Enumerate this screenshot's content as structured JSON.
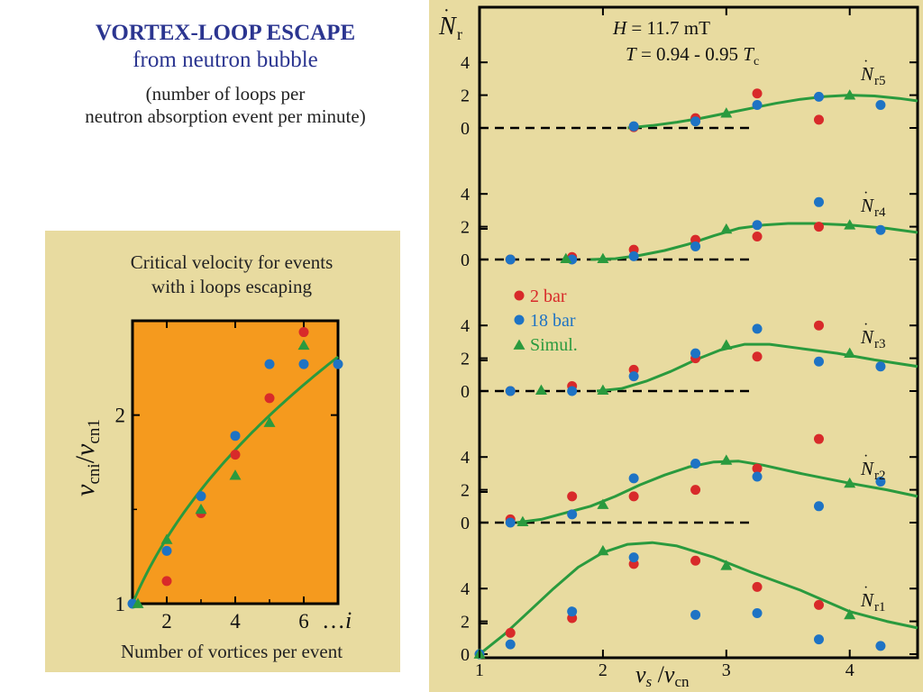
{
  "header": {
    "title": "VORTEX-LOOP ESCAPE",
    "subtitle": "from neutron bubble",
    "note_line1": "(number of loops per",
    "note_line2": "neutron absorption event per minute)"
  },
  "colors": {
    "panel_bg": "#e8dba0",
    "inset_plot_bg": "#f59a1e",
    "red": "#d82a2a",
    "blue": "#1e73c4",
    "green": "#2a9a3e",
    "axis": "#000000"
  },
  "left_panel": {
    "caption_line1": "Critical velocity for events",
    "caption_line2": "with i loops escaping",
    "xlabel": "Number of vortices per event",
    "ylabel_main": "v",
    "ylabel_sub1": "cni",
    "ylabel_sep": "/",
    "ylabel_main2": "v",
    "ylabel_sub2": "cn1",
    "x_ticks": [
      "2",
      "4",
      "6"
    ],
    "x_tick_extra": "…",
    "x_tick_extra_var": "i",
    "y_ticks": [
      "1",
      "2"
    ]
  },
  "right_panel": {
    "params_line1_var": "H",
    "params_line1_val": " = 11.7 mT",
    "params_line2_var": "T",
    "params_line2_val": " = 0.94 - 0.95 ",
    "params_line2_tail_var": "T",
    "params_line2_tail_sub": "c",
    "ylabel_var": "N",
    "ylabel_sub": "r",
    "xlabel_var1": "v",
    "xlabel_sub1": "s",
    "xlabel_sep": " /",
    "xlabel_var2": "v",
    "xlabel_sub2": "cn",
    "legend": [
      {
        "label": "2 bar",
        "color": "red",
        "marker": "circle"
      },
      {
        "label": "18 bar",
        "color": "blue",
        "marker": "circle"
      },
      {
        "label": "Simul.",
        "color": "green",
        "marker": "triangle"
      }
    ],
    "x_ticks": [
      "1",
      "2",
      "3",
      "4"
    ]
  },
  "chart_data": [
    {
      "type": "scatter",
      "name": "critical-velocity",
      "xlim": [
        1,
        7
      ],
      "ylim": [
        1,
        2.5
      ],
      "series": [
        {
          "name": "2 bar",
          "marker": "circle",
          "color": "red",
          "x": [
            2,
            3,
            4,
            5,
            6
          ],
          "y": [
            1.12,
            1.48,
            1.79,
            2.09,
            2.44
          ]
        },
        {
          "name": "18 bar",
          "marker": "circle",
          "color": "blue",
          "x": [
            1,
            2,
            3,
            4,
            5,
            6,
            7
          ],
          "y": [
            1.0,
            1.28,
            1.57,
            1.89,
            2.27,
            2.27,
            2.27
          ]
        },
        {
          "name": "Simul.",
          "marker": "triangle",
          "color": "green",
          "x": [
            1,
            2,
            3,
            4,
            5,
            6
          ],
          "y": [
            1.0,
            1.34,
            1.5,
            1.68,
            1.96,
            2.37
          ]
        }
      ],
      "fit_curve": {
        "type": "power",
        "a": 1.0,
        "b": 0.43
      }
    },
    {
      "type": "scatter",
      "name": "escape-rates",
      "xlim": [
        1,
        4.55
      ],
      "ylim_each": [
        0,
        4.5
      ],
      "panels": [
        {
          "label_var": "N",
          "label_sub": "r5",
          "y_ticks": [
            "0",
            "2",
            "4"
          ],
          "dashed_until": 3.2,
          "red": {
            "x": [
              2.25,
              2.75,
              3.25,
              3.75
            ],
            "y": [
              0.05,
              0.6,
              2.1,
              0.5
            ]
          },
          "blue": {
            "x": [
              2.25,
              2.75,
              3.25,
              3.75,
              4.25
            ],
            "y": [
              0.1,
              0.4,
              1.4,
              1.9,
              1.4
            ]
          },
          "green": {
            "x": [
              3.0,
              4.0
            ],
            "y": [
              0.9,
              2.0
            ]
          },
          "curve": [
            [
              2.2,
              0
            ],
            [
              2.4,
              0.15
            ],
            [
              2.6,
              0.35
            ],
            [
              2.8,
              0.6
            ],
            [
              3.0,
              0.9
            ],
            [
              3.2,
              1.2
            ],
            [
              3.4,
              1.5
            ],
            [
              3.6,
              1.75
            ],
            [
              3.8,
              1.92
            ],
            [
              4.0,
              2.0
            ],
            [
              4.2,
              1.95
            ],
            [
              4.4,
              1.8
            ],
            [
              4.55,
              1.65
            ]
          ]
        },
        {
          "label_var": "N",
          "label_sub": "r4",
          "y_ticks": [
            "0",
            "2",
            "4"
          ],
          "dashed_until": 3.2,
          "red": {
            "x": [
              1.25,
              1.75,
              2.25,
              2.75,
              3.25,
              3.75
            ],
            "y": [
              0.0,
              0.15,
              0.6,
              1.2,
              1.4,
              2.0
            ]
          },
          "blue": {
            "x": [
              1.25,
              1.75,
              2.25,
              2.75,
              3.25,
              3.75,
              4.25
            ],
            "y": [
              0.0,
              0.0,
              0.2,
              0.8,
              2.1,
              3.5,
              1.8
            ]
          },
          "green": {
            "x": [
              1.7,
              2.0,
              3.0,
              4.0
            ],
            "y": [
              0.05,
              0.05,
              1.85,
              2.1
            ]
          },
          "curve": [
            [
              1.9,
              0
            ],
            [
              2.1,
              0.05
            ],
            [
              2.3,
              0.25
            ],
            [
              2.5,
              0.55
            ],
            [
              2.7,
              0.95
            ],
            [
              2.9,
              1.45
            ],
            [
              3.1,
              1.9
            ],
            [
              3.3,
              2.1
            ],
            [
              3.5,
              2.2
            ],
            [
              3.7,
              2.2
            ],
            [
              4.0,
              2.1
            ],
            [
              4.3,
              1.9
            ],
            [
              4.55,
              1.65
            ]
          ]
        },
        {
          "label_var": "N",
          "label_sub": "r3",
          "y_ticks": [
            "0",
            "2",
            "4"
          ],
          "dashed_until": 3.2,
          "red": {
            "x": [
              1.25,
              1.75,
              2.25,
              2.75,
              3.25,
              3.75
            ],
            "y": [
              0.0,
              0.3,
              1.3,
              2.0,
              2.1,
              4.0
            ]
          },
          "blue": {
            "x": [
              1.25,
              1.75,
              2.25,
              2.75,
              3.25,
              3.75,
              4.25
            ],
            "y": [
              0.0,
              0.0,
              0.9,
              2.3,
              3.8,
              1.8,
              1.5
            ]
          },
          "green": {
            "x": [
              1.5,
              2.0,
              3.0,
              4.0
            ],
            "y": [
              0.05,
              0.05,
              2.8,
              2.3
            ]
          },
          "curve": [
            [
              1.95,
              0
            ],
            [
              2.15,
              0.15
            ],
            [
              2.35,
              0.6
            ],
            [
              2.55,
              1.2
            ],
            [
              2.75,
              1.9
            ],
            [
              2.95,
              2.5
            ],
            [
              3.15,
              2.85
            ],
            [
              3.35,
              2.85
            ],
            [
              3.6,
              2.6
            ],
            [
              3.9,
              2.3
            ],
            [
              4.2,
              1.9
            ],
            [
              4.55,
              1.5
            ]
          ]
        },
        {
          "label_var": "N",
          "label_sub": "r2",
          "y_ticks": [
            "0",
            "2",
            "4"
          ],
          "dashed_until": 3.2,
          "red": {
            "x": [
              1.25,
              1.75,
              2.25,
              2.75,
              3.25,
              3.75
            ],
            "y": [
              0.2,
              1.6,
              1.6,
              2.0,
              3.3,
              5.1
            ]
          },
          "blue": {
            "x": [
              1.25,
              1.75,
              2.25,
              2.75,
              3.25,
              3.75,
              4.25
            ],
            "y": [
              0.0,
              0.5,
              2.7,
              3.6,
              2.8,
              1.0,
              2.5
            ]
          },
          "green": {
            "x": [
              1.35,
              2.0,
              3.0,
              4.0
            ],
            "y": [
              0.05,
              1.1,
              3.8,
              2.4
            ]
          },
          "curve": [
            [
              1.3,
              0
            ],
            [
              1.5,
              0.2
            ],
            [
              1.7,
              0.6
            ],
            [
              1.9,
              1.0
            ],
            [
              2.1,
              1.6
            ],
            [
              2.3,
              2.3
            ],
            [
              2.5,
              2.9
            ],
            [
              2.7,
              3.4
            ],
            [
              2.9,
              3.7
            ],
            [
              3.1,
              3.75
            ],
            [
              3.3,
              3.5
            ],
            [
              3.6,
              3.0
            ],
            [
              4.0,
              2.4
            ],
            [
              4.3,
              2.0
            ],
            [
              4.55,
              1.6
            ]
          ]
        },
        {
          "label_var": "N",
          "label_sub": "r1",
          "y_ticks": [
            "0",
            "2",
            "4"
          ],
          "dashed_until": null,
          "red": {
            "x": [
              1.25,
              1.75,
              2.25,
              2.75,
              3.25,
              3.75
            ],
            "y": [
              1.3,
              2.2,
              5.5,
              5.7,
              4.1,
              3.0
            ]
          },
          "blue": {
            "x": [
              1.0,
              1.25,
              1.75,
              2.25,
              2.75,
              3.25,
              3.75,
              4.25
            ],
            "y": [
              0.0,
              0.6,
              2.6,
              5.9,
              2.4,
              2.5,
              0.9,
              0.5
            ]
          },
          "green": {
            "x": [
              1.0,
              2.0,
              3.0,
              4.0
            ],
            "y": [
              0.0,
              6.3,
              5.4,
              2.4
            ]
          },
          "curve": [
            [
              1.0,
              0
            ],
            [
              1.2,
              1.2
            ],
            [
              1.4,
              2.6
            ],
            [
              1.6,
              4.0
            ],
            [
              1.8,
              5.3
            ],
            [
              2.0,
              6.2
            ],
            [
              2.2,
              6.7
            ],
            [
              2.4,
              6.8
            ],
            [
              2.6,
              6.6
            ],
            [
              2.9,
              5.9
            ],
            [
              3.2,
              5.0
            ],
            [
              3.6,
              3.9
            ],
            [
              4.0,
              2.6
            ],
            [
              4.3,
              2.0
            ],
            [
              4.55,
              1.6
            ]
          ]
        }
      ]
    }
  ]
}
